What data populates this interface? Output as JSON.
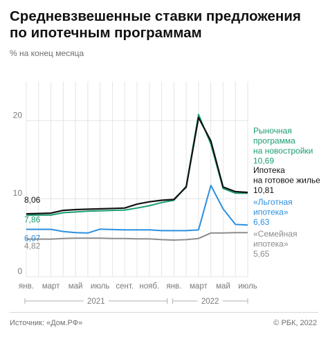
{
  "header": {
    "title": "Средневзвешенные ставки предложения по ипотечным программам",
    "subtitle": "% на конец месяца"
  },
  "footer": {
    "source": "Источник: «Дом.РФ»",
    "copyright": "© РБК, 2022"
  },
  "colors": {
    "market": "#1a9e6e",
    "secondary": "#111111",
    "preferential": "#2b8fe0",
    "family": "#8c8c8c",
    "grid": "#e4e4e4",
    "axis_text": "#7a7a7a"
  },
  "chart_data": {
    "type": "line",
    "x": [
      "янв. 2021",
      "фев. 2021",
      "март 2021",
      "апр. 2021",
      "май 2021",
      "июнь 2021",
      "июль 2021",
      "авг. 2021",
      "сент. 2021",
      "окт. 2021",
      "нояб. 2021",
      "дек. 2021",
      "янв. 2022",
      "фев. 2022",
      "март 2022",
      "апр. 2022",
      "май 2022",
      "июнь 2022",
      "июль 2022"
    ],
    "x_tick_labels": [
      "янв.",
      "",
      "март",
      "",
      "май",
      "",
      "июль",
      "",
      "сент.",
      "",
      "нояб.",
      "",
      "янв.",
      "",
      "март",
      "",
      "май",
      "",
      "июль"
    ],
    "year_labels": [
      {
        "label": "2021",
        "from": 0,
        "to": 11
      },
      {
        "label": "2022",
        "from": 12,
        "to": 18
      }
    ],
    "ylim": [
      0,
      25
    ],
    "y_ticks": [
      0,
      10,
      20
    ],
    "grid": true,
    "series": [
      {
        "key": "family",
        "name": "«Семейная ипотека»",
        "last_label": "5,65",
        "first_label": "4,82",
        "values": [
          4.82,
          4.82,
          4.82,
          4.9,
          4.95,
          4.95,
          4.95,
          4.9,
          4.9,
          4.85,
          4.85,
          4.75,
          4.7,
          4.75,
          4.9,
          5.6,
          5.6,
          5.65,
          5.65
        ]
      },
      {
        "key": "preferential",
        "name": "«Льготная ипотека»",
        "last_label": "6,63",
        "first_label": "6,07",
        "values": [
          6.07,
          6.07,
          6.07,
          5.8,
          5.65,
          5.6,
          6.1,
          6.05,
          6.0,
          6.0,
          6.0,
          5.9,
          5.9,
          5.9,
          6.0,
          11.7,
          8.7,
          6.7,
          6.63
        ]
      },
      {
        "key": "market",
        "name": "Рыночная программа на новостройки",
        "last_label": "10,69",
        "first_label": "7,86",
        "values": [
          7.86,
          7.9,
          7.9,
          8.2,
          8.3,
          8.4,
          8.45,
          8.5,
          8.55,
          8.8,
          9.1,
          9.5,
          9.8,
          11.6,
          20.8,
          17.0,
          11.3,
          10.7,
          10.69
        ]
      },
      {
        "key": "secondary",
        "name": "Ипотека на готовое жилье",
        "last_label": "10,81",
        "first_label": "8,06",
        "values": [
          8.06,
          8.1,
          8.15,
          8.5,
          8.6,
          8.65,
          8.7,
          8.75,
          8.8,
          9.3,
          9.6,
          9.8,
          9.9,
          11.5,
          20.4,
          17.4,
          11.5,
          10.9,
          10.81
        ]
      }
    ]
  }
}
